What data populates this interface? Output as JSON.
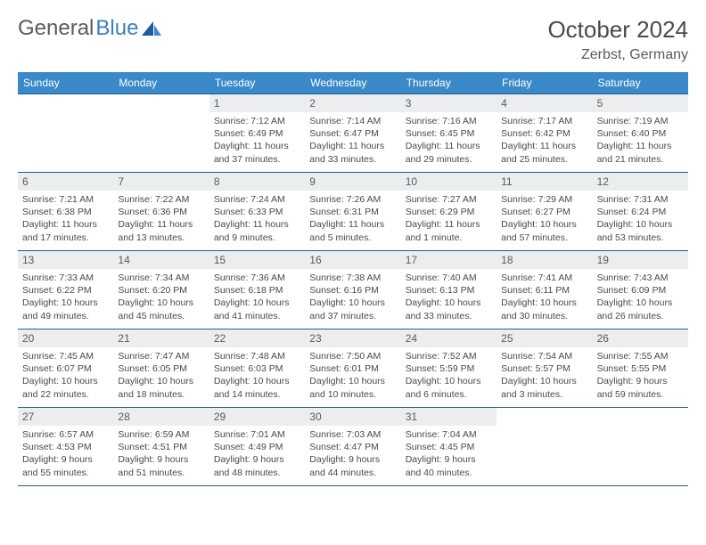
{
  "logo": {
    "text1": "General",
    "text2": "Blue"
  },
  "title": "October 2024",
  "location": "Zerbst, Germany",
  "colors": {
    "header_bg": "#3a8ac9",
    "header_text": "#ffffff",
    "daynum_bg": "#ecedee",
    "border": "#2b5a87",
    "body_text": "#4a4a4a",
    "logo_gray": "#5a5a5a",
    "logo_blue": "#3a7fc4"
  },
  "fonts": {
    "title_size": 26,
    "location_size": 16,
    "header_size": 12,
    "daynum_size": 12,
    "content_size": 10.5
  },
  "weekdays": [
    "Sunday",
    "Monday",
    "Tuesday",
    "Wednesday",
    "Thursday",
    "Friday",
    "Saturday"
  ],
  "leading_blanks": 2,
  "trailing_blanks": 2,
  "days": [
    {
      "n": "1",
      "sunrise": "7:12 AM",
      "sunset": "6:49 PM",
      "daylight": "11 hours and 37 minutes."
    },
    {
      "n": "2",
      "sunrise": "7:14 AM",
      "sunset": "6:47 PM",
      "daylight": "11 hours and 33 minutes."
    },
    {
      "n": "3",
      "sunrise": "7:16 AM",
      "sunset": "6:45 PM",
      "daylight": "11 hours and 29 minutes."
    },
    {
      "n": "4",
      "sunrise": "7:17 AM",
      "sunset": "6:42 PM",
      "daylight": "11 hours and 25 minutes."
    },
    {
      "n": "5",
      "sunrise": "7:19 AM",
      "sunset": "6:40 PM",
      "daylight": "11 hours and 21 minutes."
    },
    {
      "n": "6",
      "sunrise": "7:21 AM",
      "sunset": "6:38 PM",
      "daylight": "11 hours and 17 minutes."
    },
    {
      "n": "7",
      "sunrise": "7:22 AM",
      "sunset": "6:36 PM",
      "daylight": "11 hours and 13 minutes."
    },
    {
      "n": "8",
      "sunrise": "7:24 AM",
      "sunset": "6:33 PM",
      "daylight": "11 hours and 9 minutes."
    },
    {
      "n": "9",
      "sunrise": "7:26 AM",
      "sunset": "6:31 PM",
      "daylight": "11 hours and 5 minutes."
    },
    {
      "n": "10",
      "sunrise": "7:27 AM",
      "sunset": "6:29 PM",
      "daylight": "11 hours and 1 minute."
    },
    {
      "n": "11",
      "sunrise": "7:29 AM",
      "sunset": "6:27 PM",
      "daylight": "10 hours and 57 minutes."
    },
    {
      "n": "12",
      "sunrise": "7:31 AM",
      "sunset": "6:24 PM",
      "daylight": "10 hours and 53 minutes."
    },
    {
      "n": "13",
      "sunrise": "7:33 AM",
      "sunset": "6:22 PM",
      "daylight": "10 hours and 49 minutes."
    },
    {
      "n": "14",
      "sunrise": "7:34 AM",
      "sunset": "6:20 PM",
      "daylight": "10 hours and 45 minutes."
    },
    {
      "n": "15",
      "sunrise": "7:36 AM",
      "sunset": "6:18 PM",
      "daylight": "10 hours and 41 minutes."
    },
    {
      "n": "16",
      "sunrise": "7:38 AM",
      "sunset": "6:16 PM",
      "daylight": "10 hours and 37 minutes."
    },
    {
      "n": "17",
      "sunrise": "7:40 AM",
      "sunset": "6:13 PM",
      "daylight": "10 hours and 33 minutes."
    },
    {
      "n": "18",
      "sunrise": "7:41 AM",
      "sunset": "6:11 PM",
      "daylight": "10 hours and 30 minutes."
    },
    {
      "n": "19",
      "sunrise": "7:43 AM",
      "sunset": "6:09 PM",
      "daylight": "10 hours and 26 minutes."
    },
    {
      "n": "20",
      "sunrise": "7:45 AM",
      "sunset": "6:07 PM",
      "daylight": "10 hours and 22 minutes."
    },
    {
      "n": "21",
      "sunrise": "7:47 AM",
      "sunset": "6:05 PM",
      "daylight": "10 hours and 18 minutes."
    },
    {
      "n": "22",
      "sunrise": "7:48 AM",
      "sunset": "6:03 PM",
      "daylight": "10 hours and 14 minutes."
    },
    {
      "n": "23",
      "sunrise": "7:50 AM",
      "sunset": "6:01 PM",
      "daylight": "10 hours and 10 minutes."
    },
    {
      "n": "24",
      "sunrise": "7:52 AM",
      "sunset": "5:59 PM",
      "daylight": "10 hours and 6 minutes."
    },
    {
      "n": "25",
      "sunrise": "7:54 AM",
      "sunset": "5:57 PM",
      "daylight": "10 hours and 3 minutes."
    },
    {
      "n": "26",
      "sunrise": "7:55 AM",
      "sunset": "5:55 PM",
      "daylight": "9 hours and 59 minutes."
    },
    {
      "n": "27",
      "sunrise": "6:57 AM",
      "sunset": "4:53 PM",
      "daylight": "9 hours and 55 minutes."
    },
    {
      "n": "28",
      "sunrise": "6:59 AM",
      "sunset": "4:51 PM",
      "daylight": "9 hours and 51 minutes."
    },
    {
      "n": "29",
      "sunrise": "7:01 AM",
      "sunset": "4:49 PM",
      "daylight": "9 hours and 48 minutes."
    },
    {
      "n": "30",
      "sunrise": "7:03 AM",
      "sunset": "4:47 PM",
      "daylight": "9 hours and 44 minutes."
    },
    {
      "n": "31",
      "sunrise": "7:04 AM",
      "sunset": "4:45 PM",
      "daylight": "9 hours and 40 minutes."
    }
  ],
  "labels": {
    "sunrise": "Sunrise:",
    "sunset": "Sunset:",
    "daylight": "Daylight:"
  }
}
